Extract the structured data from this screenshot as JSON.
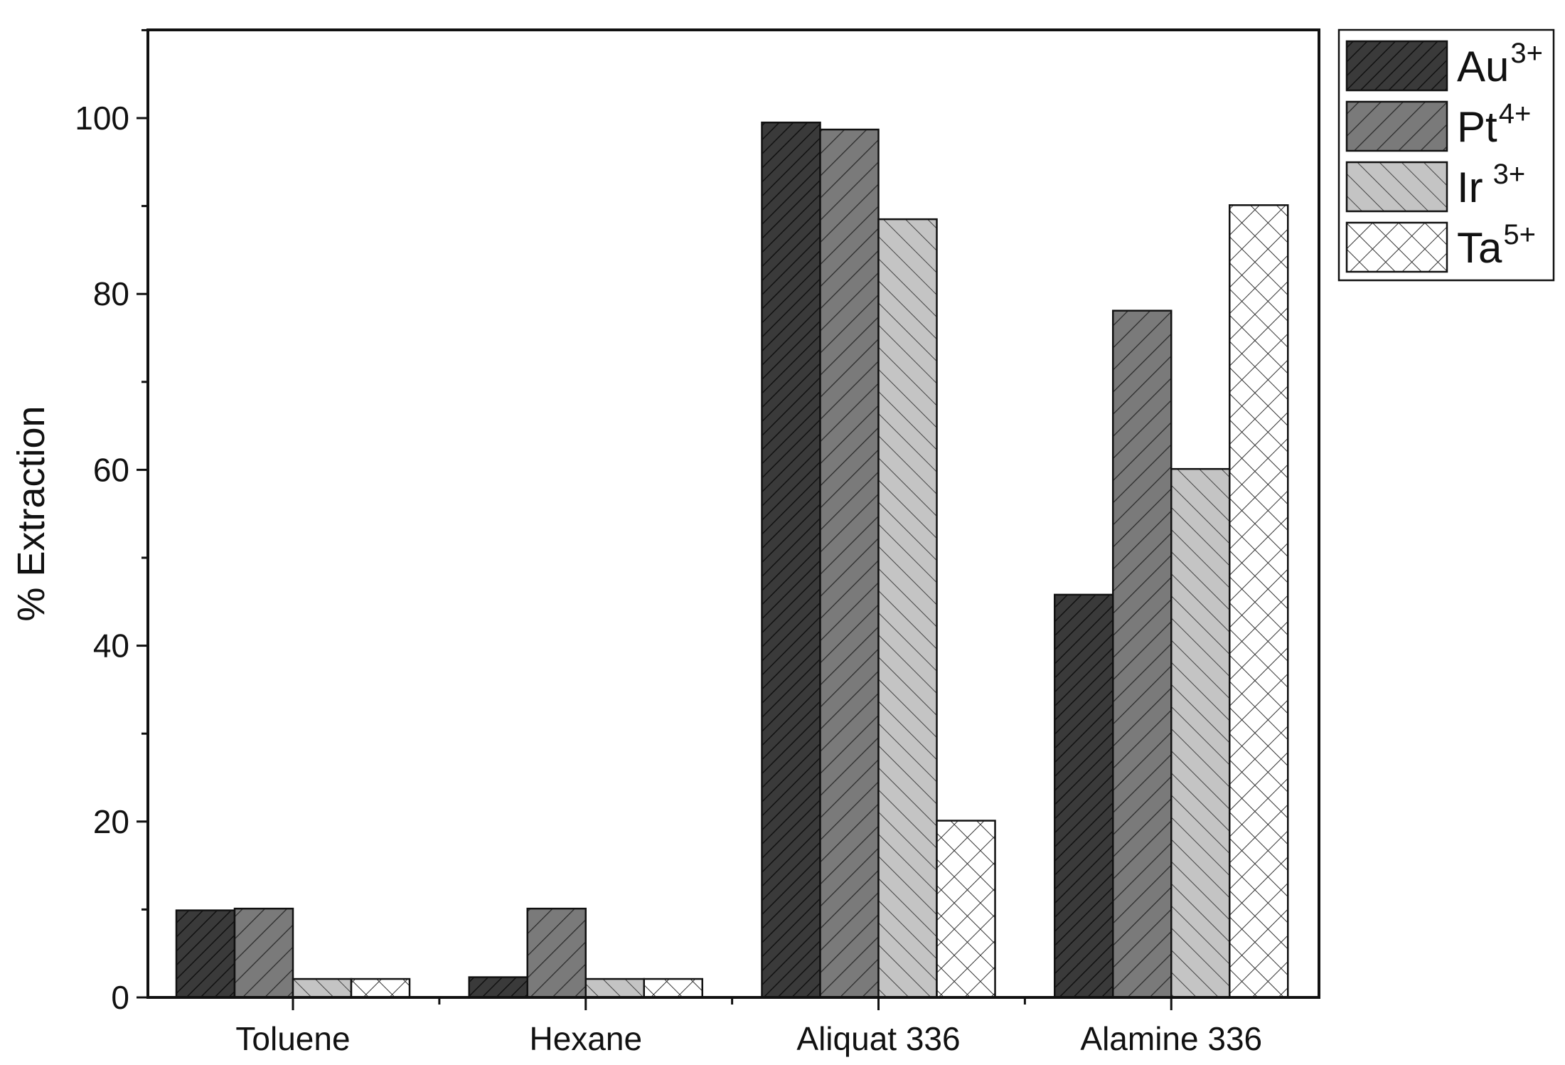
{
  "chart_data": {
    "type": "bar",
    "title": "",
    "xlabel": "",
    "ylabel": "% Extraction",
    "categories": [
      "Toluene",
      "Hexane",
      "Aliquat 336",
      "Alamine 336"
    ],
    "ylim": [
      0,
      110
    ],
    "yticks": [
      0,
      20,
      40,
      60,
      80,
      100
    ],
    "grid": false,
    "legend_position": "outside-top-right",
    "series": [
      {
        "name": "Au",
        "charge": "3+",
        "pattern": "dense-diagonal",
        "color": "#3a3a3a",
        "values": [
          9.9,
          2.3,
          99.5,
          45.8
        ]
      },
      {
        "name": "Pt",
        "charge": "4+",
        "pattern": "diagonal",
        "color": "#7a7a7a",
        "values": [
          10.1,
          10.1,
          98.7,
          78.1
        ]
      },
      {
        "name": "Ir",
        "charge": "3+",
        "pattern": "back-diagonal",
        "color": "#c4c4c4",
        "values": [
          2.1,
          2.1,
          88.5,
          60.1
        ]
      },
      {
        "name": "Ta",
        "charge": "5+",
        "pattern": "crosshatch",
        "color": "#ffffff",
        "values": [
          2.1,
          2.1,
          20.1,
          90.1
        ]
      }
    ]
  }
}
